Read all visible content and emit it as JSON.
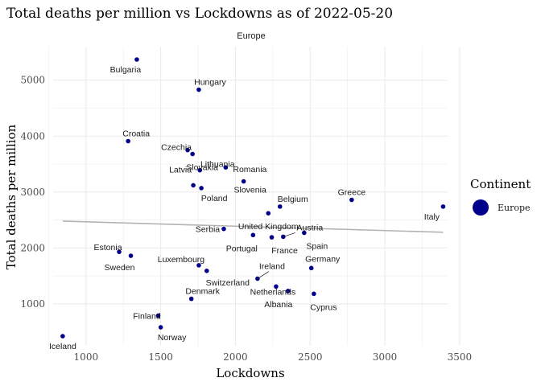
{
  "chart_data": {
    "type": "scatter",
    "title": "Total deaths per million vs Lockdowns as of 2022-05-20",
    "facet_label": "Europe",
    "xlabel": "Lockdowns",
    "ylabel": "Total deaths per million",
    "xlim": [
      780,
      3420
    ],
    "ylim": [
      250,
      5600
    ],
    "x_ticks": [
      1000,
      1500,
      2000,
      2500,
      3000,
      3500
    ],
    "y_ticks": [
      1000,
      2000,
      3000,
      4000,
      5000
    ],
    "grid": true,
    "legend": {
      "title": "Continent",
      "entries": [
        "Europe"
      ],
      "position": "right"
    },
    "colors": {
      "point": "#00008b",
      "trend": "#b3b3b3",
      "grid": "#ebebeb",
      "text": "#1a1a1a"
    },
    "points": [
      {
        "label": "Iceland",
        "x": 844,
        "y": 422
      },
      {
        "label": "Finland",
        "x": 1483,
        "y": 790
      },
      {
        "label": "Norway",
        "x": 1500,
        "y": 580
      },
      {
        "label": "Denmark",
        "x": 1705,
        "y": 1090
      },
      {
        "label": "Estonia",
        "x": 1222,
        "y": 1930
      },
      {
        "label": "Sweden",
        "x": 1300,
        "y": 1860
      },
      {
        "label": "Croatia",
        "x": 1282,
        "y": 3910
      },
      {
        "label": "Bulgaria",
        "x": 1340,
        "y": 5370
      },
      {
        "label": "Hungary",
        "x": 1755,
        "y": 4830
      },
      {
        "label": "Czechia",
        "x": 1680,
        "y": 3750
      },
      {
        "label": "Slovakia",
        "x": 1713,
        "y": 3680
      },
      {
        "label": "Romania",
        "x": 1935,
        "y": 3440
      },
      {
        "label": "Slovenia",
        "x": 2055,
        "y": 3190
      },
      {
        "label": "Latvia",
        "x": 1718,
        "y": 3120
      },
      {
        "label": "Lithuania",
        "x": 1762,
        "y": 3390
      },
      {
        "label": "Poland",
        "x": 1772,
        "y": 3070
      },
      {
        "label": "Belgium",
        "x": 2298,
        "y": 2740
      },
      {
        "label": "Greece",
        "x": 2778,
        "y": 2860
      },
      {
        "label": "Italy",
        "x": 3390,
        "y": 2740
      },
      {
        "label": "Serbia",
        "x": 1922,
        "y": 2340
      },
      {
        "label": "United Kingdom",
        "x": 2220,
        "y": 2620
      },
      {
        "label": "Portugal",
        "x": 2118,
        "y": 2230
      },
      {
        "label": "France",
        "x": 2243,
        "y": 2190
      },
      {
        "label": "Austria",
        "x": 2320,
        "y": 2200
      },
      {
        "label": "Spain",
        "x": 2460,
        "y": 2270
      },
      {
        "label": "Luxembourg",
        "x": 1755,
        "y": 1690
      },
      {
        "label": "Switzerland",
        "x": 1808,
        "y": 1590
      },
      {
        "label": "Ireland",
        "x": 2148,
        "y": 1450
      },
      {
        "label": "Netherlands",
        "x": 2272,
        "y": 1310
      },
      {
        "label": "Germany",
        "x": 2508,
        "y": 1640
      },
      {
        "label": "Albania",
        "x": 2352,
        "y": 1230
      },
      {
        "label": "Cyprus",
        "x": 2525,
        "y": 1180
      }
    ],
    "trend_line": {
      "x": [
        844,
        3390
      ],
      "y": [
        2480,
        2280
      ]
    }
  }
}
